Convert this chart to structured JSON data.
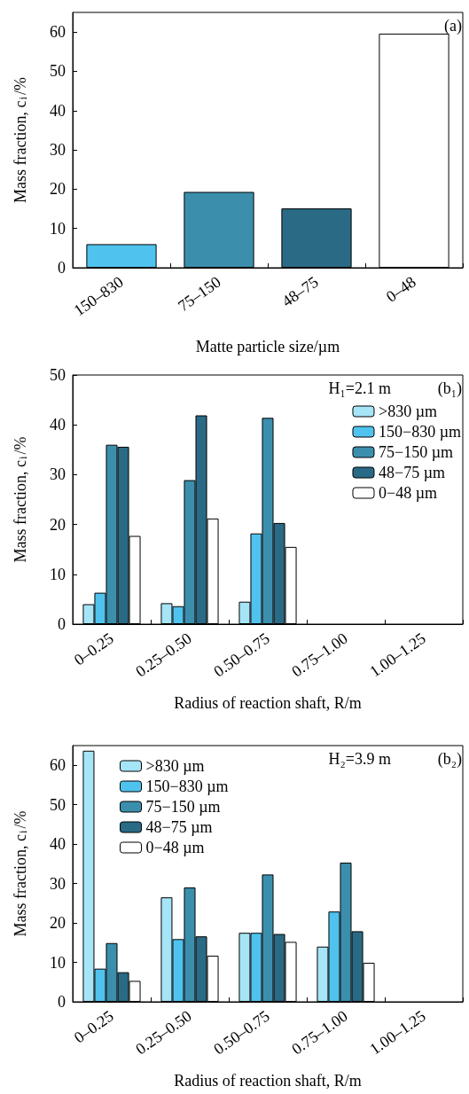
{
  "chart_data": [
    {
      "type": "bar",
      "categories": [
        "150–830",
        "75–150",
        "48–75",
        "0–48"
      ],
      "values": [
        6.0,
        19.3,
        15.1,
        59.6
      ],
      "colors": [
        "#4fc3ee",
        "#3b8fad",
        "#2a6a85",
        "#ffffff"
      ],
      "xlabel": "Matte particle size/µm",
      "ylabel": "Mass fraction, c$_{i}$/%",
      "ylim": [
        0,
        65
      ],
      "yticks": [
        0,
        10,
        20,
        30,
        40,
        50,
        60
      ],
      "annotations": [
        "(a)"
      ]
    },
    {
      "type": "bar",
      "categories": [
        "0–0.25",
        "0.25–0.50",
        "0.50–0.75",
        "0.75–1.00",
        "1.00–1.25"
      ],
      "xlabel": "Radius of reaction shaft, R/m",
      "ylabel": "Mass fraction, c$_{i}$/%",
      "ylim": [
        0,
        50
      ],
      "yticks": [
        0,
        10,
        20,
        30,
        40,
        50
      ],
      "legend": "top right",
      "annotations": [
        "H₁=2.1 m",
        "(b₁)"
      ],
      "series": [
        {
          "name": ">830 µm",
          "color": "#a6e4f7",
          "values": [
            4.0,
            4.2,
            4.5,
            null,
            null
          ]
        },
        {
          "name": "150−830 µm",
          "color": "#4fc3ee",
          "values": [
            6.3,
            3.6,
            18.2,
            null,
            null
          ]
        },
        {
          "name": "75−150 µm",
          "color": "#3b8fad",
          "values": [
            36.0,
            28.9,
            41.4,
            null,
            null
          ]
        },
        {
          "name": "48−75 µm",
          "color": "#2a6a85",
          "values": [
            35.6,
            41.9,
            20.3,
            null,
            null
          ]
        },
        {
          "name": "0−48 µm",
          "color": "#ffffff",
          "values": [
            17.7,
            21.2,
            15.5,
            null,
            null
          ]
        }
      ]
    },
    {
      "type": "bar",
      "categories": [
        "0–0.25",
        "0.25–0.50",
        "0.50–0.75",
        "0.75–1.00",
        "1.00–1.25"
      ],
      "xlabel": "Radius of reaction shaft, R/m",
      "ylabel": "Mass fraction, c$_{i}$/%",
      "ylim": [
        0,
        65
      ],
      "yticks": [
        0,
        10,
        20,
        30,
        40,
        50,
        60
      ],
      "legend": "top left",
      "annotations": [
        "H₂=3.9 m",
        "(b₂)"
      ],
      "series": [
        {
          "name": ">830 µm",
          "color": "#a6e4f7",
          "values": [
            63.7,
            26.5,
            17.5,
            14.0,
            null
          ]
        },
        {
          "name": "150−830 µm",
          "color": "#4fc3ee",
          "values": [
            8.4,
            15.9,
            17.5,
            22.9,
            null
          ]
        },
        {
          "name": "75−150 µm",
          "color": "#3b8fad",
          "values": [
            14.9,
            29.0,
            32.3,
            35.3,
            null
          ]
        },
        {
          "name": "48−75 µm",
          "color": "#2a6a85",
          "values": [
            7.5,
            16.6,
            17.2,
            17.9,
            null
          ]
        },
        {
          "name": "0−48 µm",
          "color": "#ffffff",
          "values": [
            5.3,
            11.7,
            15.2,
            9.9,
            null
          ]
        }
      ]
    }
  ]
}
